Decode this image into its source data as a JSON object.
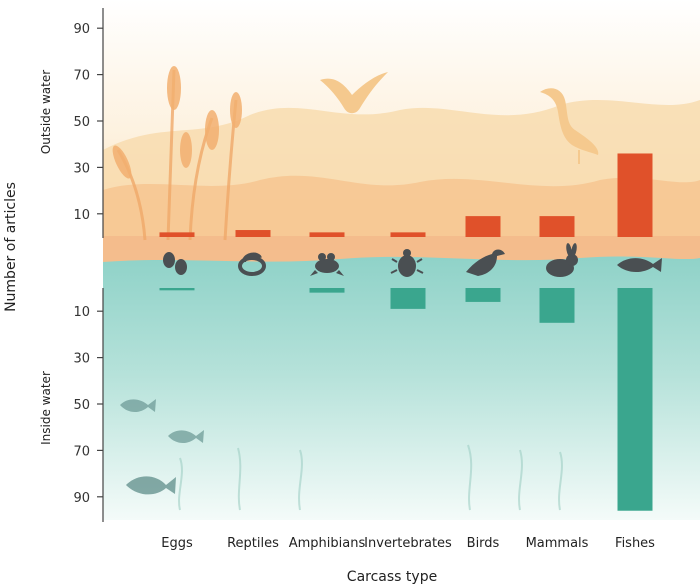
{
  "chart_data": {
    "type": "bar",
    "xlabel": "Carcass type",
    "ylabel": "Number of articles",
    "zones": {
      "upper": "Outside water",
      "lower": "Inside water"
    },
    "ticks": [
      10,
      30,
      50,
      70,
      90
    ],
    "ylim": [
      0,
      100
    ],
    "categories": [
      "Eggs",
      "Reptiles",
      "Amphibians",
      "Invertebrates",
      "Birds",
      "Mammals",
      "Fishes"
    ],
    "series": [
      {
        "zone": "outside",
        "color": "#e0512a",
        "values": [
          2,
          3,
          2,
          2,
          9,
          9,
          36
        ]
      },
      {
        "zone": "inside",
        "color": "#3aa68e",
        "values": [
          1,
          0,
          2,
          9,
          6,
          15,
          96
        ]
      }
    ],
    "icons": [
      "eggs-icon",
      "snake-icon",
      "frog-icon",
      "beetle-icon",
      "bird-icon",
      "rabbit-icon",
      "fish-icon"
    ],
    "colors": {
      "sky": "#fbe9cf",
      "reeds": "#f5c28a",
      "water": "#8fd2c8",
      "silhouette": "#4a4f52"
    }
  }
}
